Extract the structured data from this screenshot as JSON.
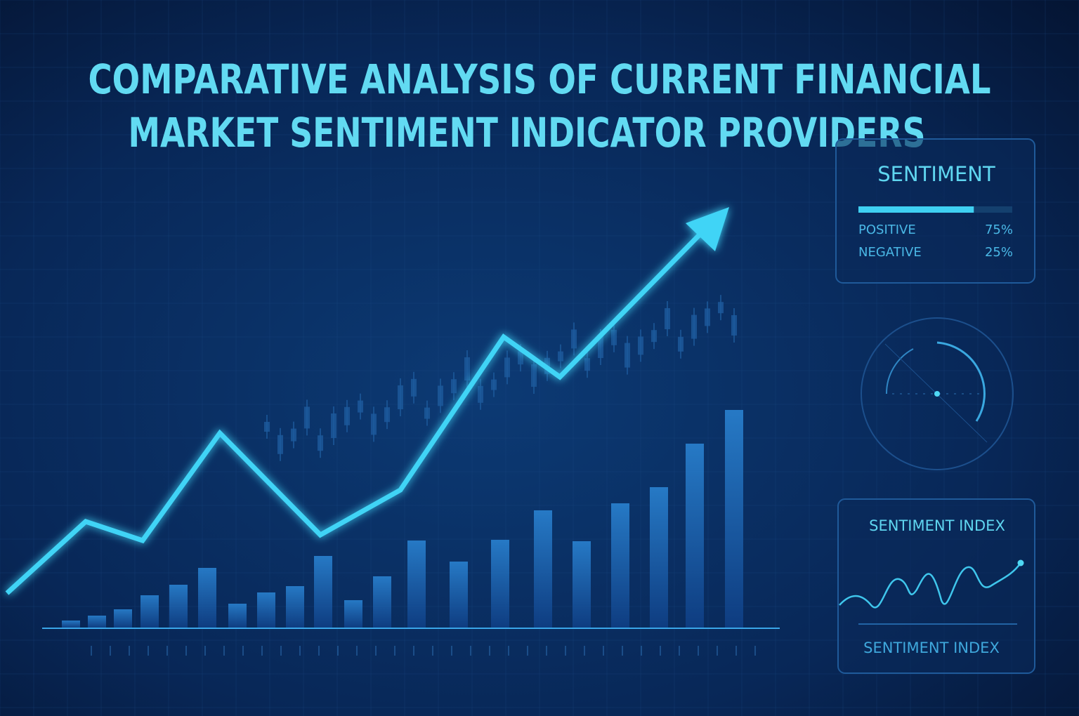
{
  "title": {
    "lines": [
      "COMPARATIVE ANALYSIS OF CURRENT FINANCIAL",
      "MARKET SENTIMENT INDICATOR PROVIDERS"
    ]
  },
  "sentiment_panel": {
    "title": "SENTIMENT",
    "rows": [
      {
        "label": "POSITIVE",
        "value": 75,
        "value_label": "75%"
      },
      {
        "label": "NEGATIVE",
        "value": 25,
        "value_label": "25%"
      }
    ]
  },
  "index_panel": {
    "title": "SENTIMENT INDEX",
    "footer": "SENTIMENT INDEX"
  }
}
